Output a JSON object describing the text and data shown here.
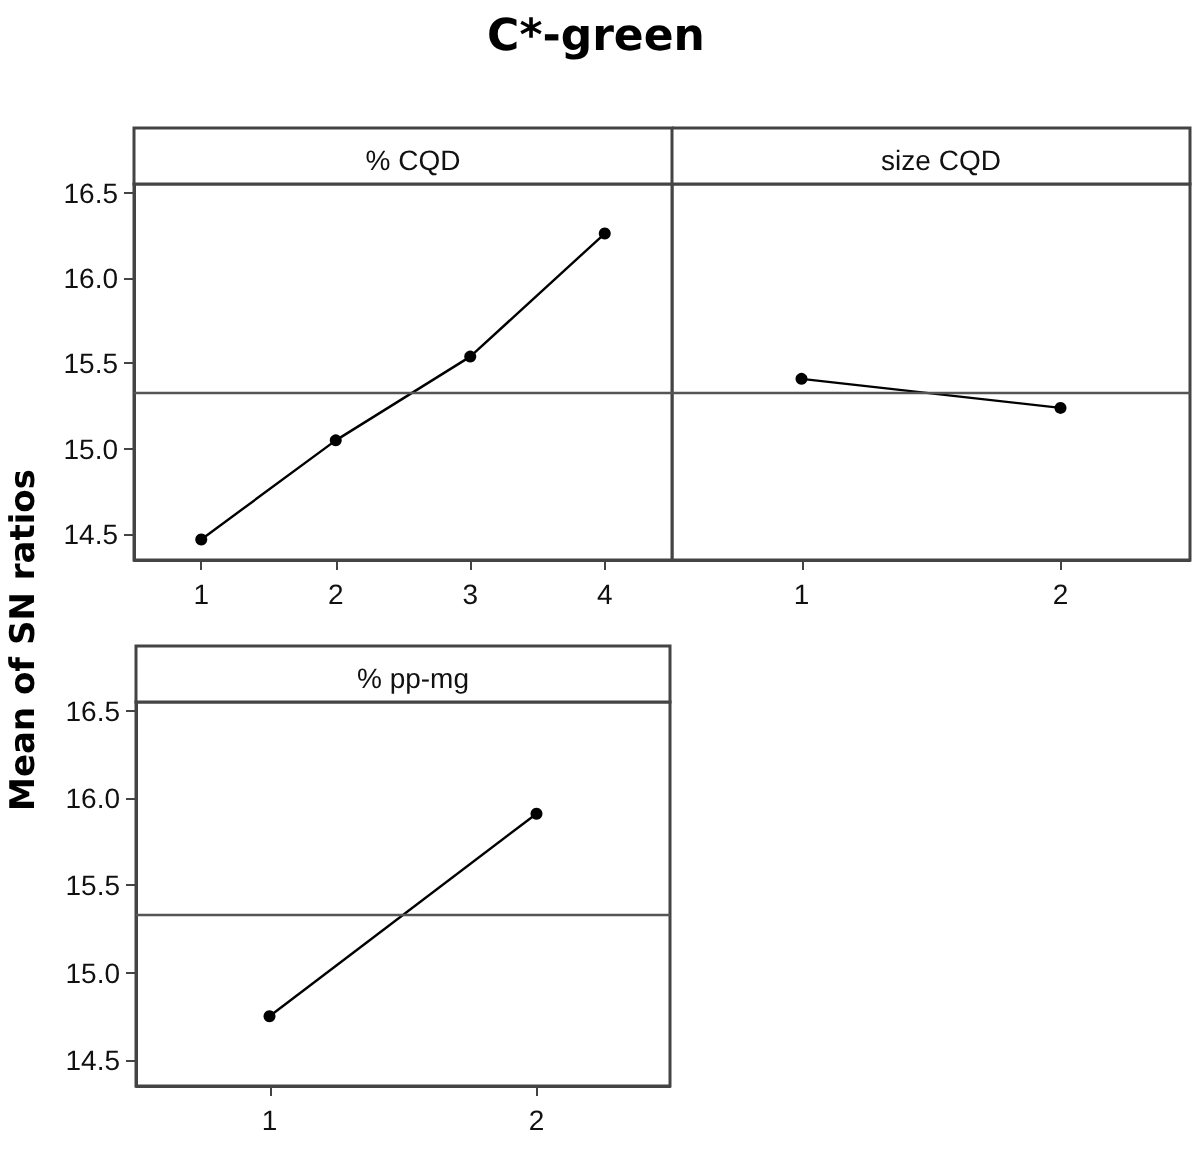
{
  "chart_data": [
    {
      "type": "line",
      "title": "C*-green",
      "subtitle": "% CQD",
      "ylabel": "Mean of SN ratios",
      "categories": [
        "1",
        "2",
        "3",
        "4"
      ],
      "values": [
        14.47,
        15.05,
        15.54,
        16.26
      ],
      "color": "#000000",
      "marker": "circle",
      "ylim": [
        14.35,
        16.55
      ],
      "yticks": [
        {
          "value": 14.5,
          "label": "14.5"
        },
        {
          "value": 15,
          "label": "15.0"
        },
        {
          "value": 15.5,
          "label": "15.5"
        },
        {
          "value": 16,
          "label": "16.0"
        },
        {
          "value": 16.5,
          "label": "16.5"
        }
      ],
      "ref_lines": [
        {
          "axis": "y",
          "value": 15.33,
          "color": "#555555"
        }
      ],
      "grid": false
    },
    {
      "type": "line",
      "subtitle": "size CQD",
      "categories": [
        "1",
        "2"
      ],
      "values": [
        15.41,
        15.24
      ],
      "color": "#000000",
      "marker": "circle",
      "ylim": [
        14.35,
        16.55
      ],
      "tick_labels": "x",
      "ref_lines": [
        {
          "axis": "y",
          "value": 15.33,
          "color": "#555555"
        }
      ],
      "grid": false
    },
    {
      "type": "line",
      "subtitle": "% pp-mg",
      "categories": [
        "1",
        "2"
      ],
      "values": [
        14.75,
        15.91
      ],
      "color": "#000000",
      "marker": "circle",
      "ylim": [
        14.35,
        16.55
      ],
      "yticks": [
        {
          "value": 14.5,
          "label": "14.5"
        },
        {
          "value": 15,
          "label": "15.0"
        },
        {
          "value": 15.5,
          "label": "15.5"
        },
        {
          "value": 16,
          "label": "16.0"
        },
        {
          "value": 16.5,
          "label": "16.5"
        }
      ],
      "ref_lines": [
        {
          "axis": "y",
          "value": 15.33,
          "color": "#555555"
        }
      ],
      "grid": false
    }
  ]
}
